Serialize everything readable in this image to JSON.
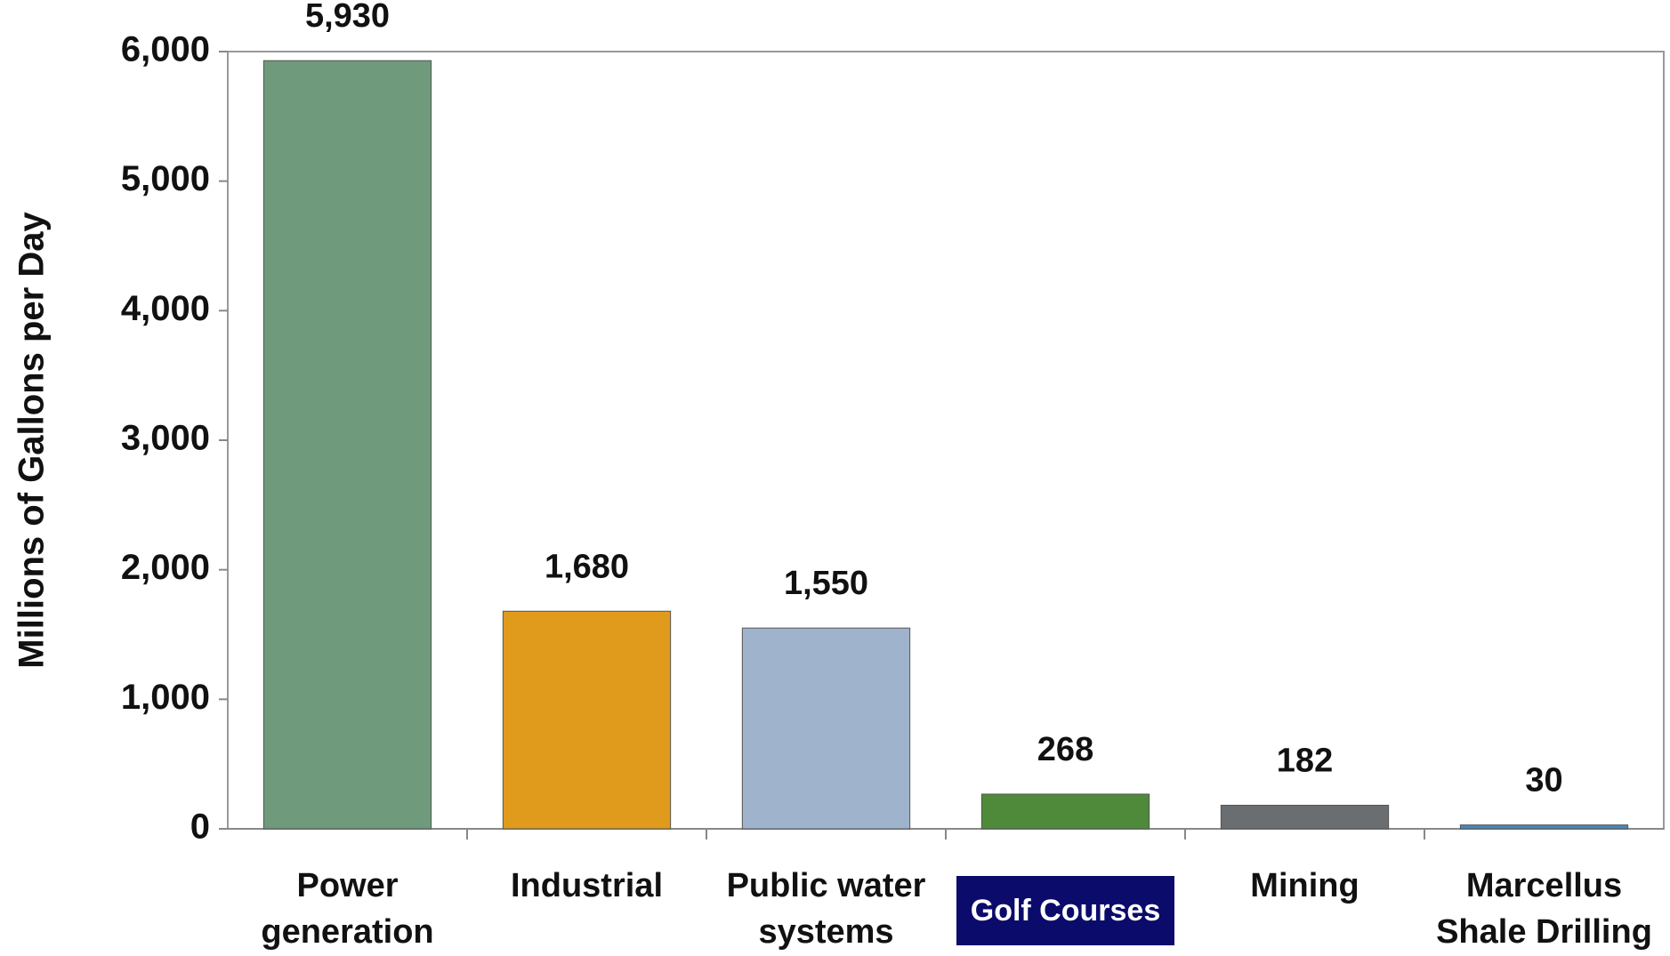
{
  "chart_data": {
    "type": "bar",
    "y_label": "Millions of Gallons per Day",
    "categories": [
      "Power generation",
      "Industrial",
      "Public water systems",
      "Golf Courses",
      "Mining",
      "Marcellus Shale Drilling"
    ],
    "values": [
      5930,
      1680,
      1550,
      268,
      182,
      30
    ],
    "value_labels": [
      "5,930",
      "1,680",
      "1,550",
      "268",
      "182",
      "30"
    ],
    "colors": [
      "#6f9a7c",
      "#e09a1c",
      "#9fb4cc",
      "#4f8a3a",
      "#6a6e70",
      "#4a86b8"
    ],
    "ylim": [
      0,
      6000
    ],
    "yticks": [
      0,
      {
        "value": 1000,
        "label": "1,000"
      },
      {
        "value": 2000,
        "label": "2,000"
      },
      {
        "value": 3000,
        "label": "3,000"
      },
      {
        "value": 4000,
        "label": "4,000"
      },
      {
        "value": 5000,
        "label": "5,000"
      },
      {
        "value": 6000,
        "label": "6,000"
      }
    ],
    "highlighted_category": 3
  }
}
